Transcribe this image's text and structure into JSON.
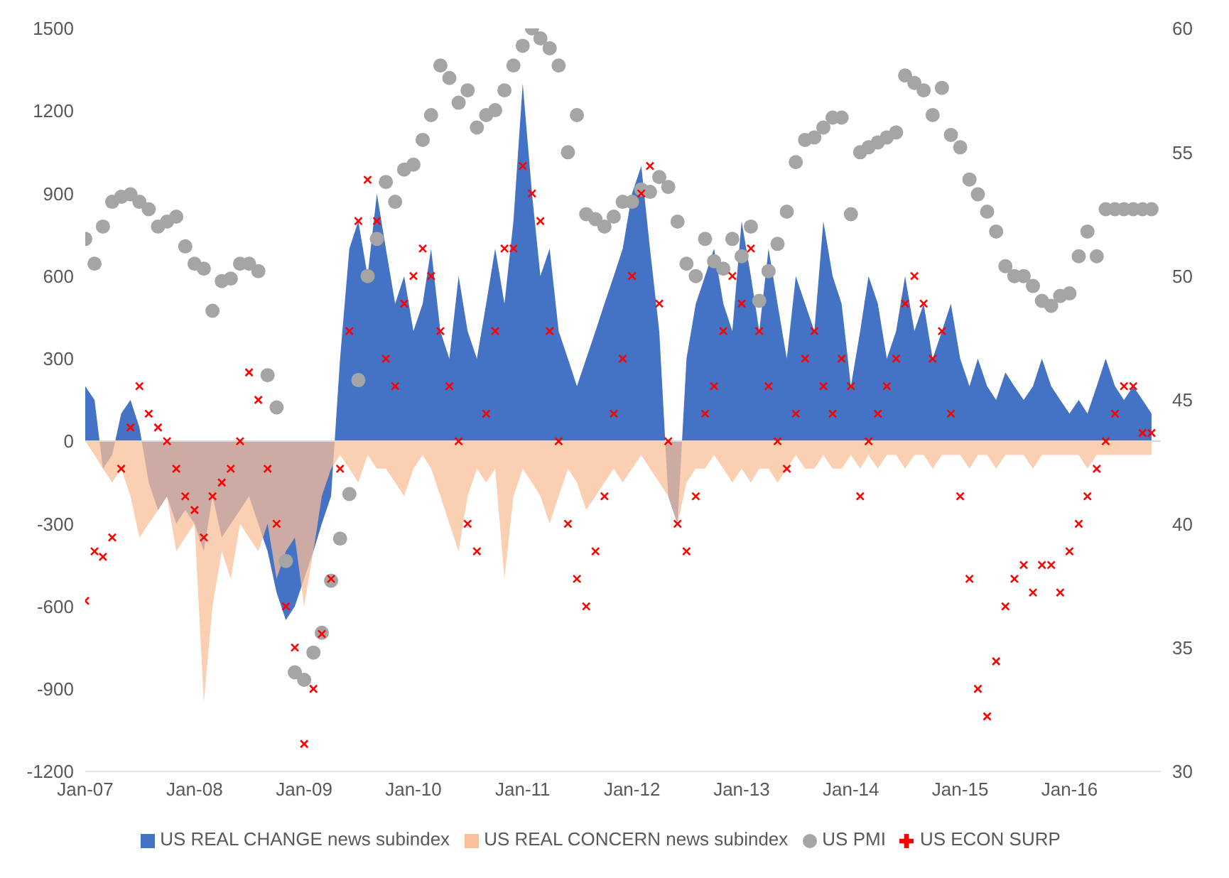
{
  "chart_data": {
    "type": "area",
    "x": [
      "2007-01",
      "2007-02",
      "2007-03",
      "2007-04",
      "2007-05",
      "2007-06",
      "2007-07",
      "2007-08",
      "2007-09",
      "2007-10",
      "2007-11",
      "2007-12",
      "2008-01",
      "2008-02",
      "2008-03",
      "2008-04",
      "2008-05",
      "2008-06",
      "2008-07",
      "2008-08",
      "2008-09",
      "2008-10",
      "2008-11",
      "2008-12",
      "2009-01",
      "2009-02",
      "2009-03",
      "2009-04",
      "2009-05",
      "2009-06",
      "2009-07",
      "2009-08",
      "2009-09",
      "2009-10",
      "2009-11",
      "2009-12",
      "2010-01",
      "2010-02",
      "2010-03",
      "2010-04",
      "2010-05",
      "2010-06",
      "2010-07",
      "2010-08",
      "2010-09",
      "2010-10",
      "2010-11",
      "2010-12",
      "2011-01",
      "2011-02",
      "2011-03",
      "2011-04",
      "2011-05",
      "2011-06",
      "2011-07",
      "2011-08",
      "2011-09",
      "2011-10",
      "2011-11",
      "2011-12",
      "2012-01",
      "2012-02",
      "2012-03",
      "2012-04",
      "2012-05",
      "2012-06",
      "2012-07",
      "2012-08",
      "2012-09",
      "2012-10",
      "2012-11",
      "2012-12",
      "2013-01",
      "2013-02",
      "2013-03",
      "2013-04",
      "2013-05",
      "2013-06",
      "2013-07",
      "2013-08",
      "2013-09",
      "2013-10",
      "2013-11",
      "2013-12",
      "2014-01",
      "2014-02",
      "2014-03",
      "2014-04",
      "2014-05",
      "2014-06",
      "2014-07",
      "2014-08",
      "2014-09",
      "2014-10",
      "2014-11",
      "2014-12",
      "2015-01",
      "2015-02",
      "2015-03",
      "2015-04",
      "2015-05",
      "2015-06",
      "2015-07",
      "2015-08",
      "2015-09",
      "2015-10",
      "2015-11",
      "2015-12",
      "2016-01",
      "2016-02",
      "2016-03",
      "2016-04",
      "2016-05",
      "2016-06",
      "2016-07",
      "2016-08",
      "2016-09",
      "2016-10"
    ],
    "series": [
      {
        "name": "US REAL CHANGE news subindex",
        "color": "#4472c4",
        "values": [
          200,
          150,
          -100,
          -50,
          100,
          150,
          50,
          -150,
          -250,
          -200,
          -300,
          -250,
          -300,
          -400,
          -200,
          -350,
          -300,
          -250,
          -200,
          -300,
          -400,
          -550,
          -650,
          -600,
          -500,
          -400,
          -300,
          -200,
          300,
          700,
          800,
          600,
          900,
          700,
          500,
          600,
          400,
          500,
          700,
          400,
          300,
          600,
          400,
          300,
          500,
          700,
          500,
          800,
          1300,
          900,
          600,
          700,
          400,
          300,
          200,
          300,
          400,
          500,
          600,
          700,
          900,
          1000,
          700,
          400,
          -200,
          -300,
          300,
          500,
          600,
          700,
          500,
          400,
          800,
          600,
          400,
          700,
          500,
          300,
          600,
          500,
          400,
          800,
          600,
          500,
          200,
          400,
          600,
          500,
          300,
          400,
          600,
          400,
          500,
          300,
          400,
          500,
          300,
          200,
          300,
          200,
          150,
          250,
          200,
          150,
          200,
          300,
          200,
          150,
          100,
          150,
          100,
          200,
          300,
          200,
          150,
          200,
          150,
          100
        ]
      },
      {
        "name": "US REAL CONCERN news subindex",
        "color": "#f8bf98",
        "values": [
          0,
          -50,
          -100,
          -150,
          -100,
          -200,
          -350,
          -300,
          -250,
          -200,
          -400,
          -350,
          -300,
          -950,
          -600,
          -400,
          -500,
          -300,
          -350,
          -400,
          -300,
          -500,
          -400,
          -350,
          -600,
          -400,
          -200,
          -100,
          -50,
          -100,
          -150,
          -50,
          -100,
          -100,
          -150,
          -200,
          -100,
          -50,
          -100,
          -200,
          -300,
          -400,
          -200,
          -100,
          -150,
          -100,
          -500,
          -200,
          -100,
          -150,
          -200,
          -300,
          -200,
          -100,
          -150,
          -250,
          -200,
          -150,
          -100,
          -150,
          -100,
          -50,
          -100,
          -150,
          -200,
          -300,
          -150,
          -100,
          -100,
          -50,
          -100,
          -150,
          -100,
          -150,
          -100,
          -100,
          -150,
          -100,
          -50,
          -100,
          -100,
          -50,
          -100,
          -100,
          -50,
          -100,
          -50,
          -100,
          -50,
          -50,
          -100,
          -50,
          -50,
          -100,
          -50,
          -50,
          -50,
          -100,
          -50,
          -50,
          -100,
          -50,
          -50,
          -50,
          -100,
          -50,
          -50,
          -50,
          -50,
          -50,
          -100,
          -50,
          -50,
          -50,
          -50,
          -50,
          -50,
          -50
        ]
      },
      {
        "name": "US PMI",
        "type": "scatter",
        "marker": "circle",
        "axis": "y2",
        "color": "#a5a5a5",
        "values": [
          51.5,
          50.5,
          52,
          53,
          53.2,
          53.3,
          53,
          52.7,
          52,
          52.2,
          52.4,
          51.2,
          50.5,
          50.3,
          48.6,
          49.8,
          49.9,
          50.5,
          50.5,
          50.2,
          46,
          44.7,
          38.5,
          34,
          33.7,
          34.8,
          35.6,
          37.7,
          39.4,
          41.2,
          45.8,
          50,
          51.5,
          53.8,
          53,
          54.3,
          54.5,
          55.5,
          56.5,
          58.5,
          58,
          57,
          57.5,
          56,
          56.5,
          56.7,
          57.5,
          58.5,
          59.3,
          60,
          59.6,
          59.2,
          58.5,
          55,
          56.5,
          52.5,
          52.3,
          52,
          52.4,
          53,
          53,
          53.5,
          53.4,
          54,
          53.6,
          52.2,
          50.5,
          50,
          51.5,
          50.6,
          50.3,
          51.5,
          50.8,
          52,
          49,
          50.2,
          51.3,
          52.6,
          54.6,
          55.5,
          55.6,
          56,
          56.4,
          56.4,
          52.5,
          55,
          55.2,
          55.4,
          55.6,
          55.8,
          58.1,
          57.8,
          57.5,
          56.5,
          57.6,
          55.7,
          55.2,
          53.9,
          53.3,
          52.6,
          51.8,
          50.4,
          50,
          50,
          49.6,
          49,
          48.8,
          49.2,
          49.3,
          50.8,
          51.8,
          50.8,
          52.7,
          52.7,
          52.7,
          52.7,
          52.7,
          52.7
        ]
      },
      {
        "name": "US ECON SURP",
        "type": "scatter",
        "marker": "cross",
        "color": "#ff0000",
        "values": [
          -580,
          -400,
          -420,
          -350,
          -100,
          50,
          200,
          100,
          50,
          0,
          -100,
          -200,
          -250,
          -350,
          -200,
          -150,
          -100,
          0,
          250,
          150,
          -100,
          -300,
          -600,
          -750,
          -1100,
          -900,
          -700,
          -500,
          -100,
          400,
          800,
          950,
          800,
          300,
          200,
          500,
          600,
          700,
          600,
          400,
          200,
          0,
          -300,
          -400,
          100,
          400,
          700,
          700,
          1000,
          900,
          800,
          400,
          0,
          -300,
          -500,
          -600,
          -400,
          -200,
          100,
          300,
          600,
          900,
          1000,
          500,
          0,
          -300,
          -400,
          -200,
          100,
          200,
          400,
          600,
          500,
          700,
          400,
          200,
          0,
          -100,
          100,
          300,
          400,
          200,
          100,
          300,
          200,
          -200,
          0,
          100,
          200,
          300,
          500,
          600,
          500,
          300,
          400,
          100,
          -200,
          -500,
          -900,
          -1000,
          -800,
          -600,
          -500,
          -450,
          -550,
          -450,
          -450,
          -550,
          -400,
          -300,
          -200,
          -100,
          0,
          100,
          200,
          200,
          30,
          30
        ]
      }
    ],
    "xlim": [
      "2007-01",
      "2016-11"
    ],
    "xticks": [
      {
        "value": "2007-01",
        "label": "Jan-07"
      },
      {
        "value": "2008-01",
        "label": "Jan-08"
      },
      {
        "value": "2009-01",
        "label": "Jan-09"
      },
      {
        "value": "2010-01",
        "label": "Jan-10"
      },
      {
        "value": "2011-01",
        "label": "Jan-11"
      },
      {
        "value": "2012-01",
        "label": "Jan-12"
      },
      {
        "value": "2013-01",
        "label": "Jan-13"
      },
      {
        "value": "2014-01",
        "label": "Jan-14"
      },
      {
        "value": "2015-01",
        "label": "Jan-15"
      },
      {
        "value": "2016-01",
        "label": "Jan-16"
      }
    ],
    "ylim": [
      -1200,
      1500
    ],
    "yticks": [
      -1200,
      -900,
      -600,
      -300,
      0,
      300,
      600,
      900,
      1200,
      1500
    ],
    "y2lim": [
      30,
      60
    ],
    "y2ticks": [
      30,
      35,
      40,
      45,
      50,
      55,
      60
    ],
    "ref_lines": [
      {
        "axis": "y",
        "value": 0,
        "color": "#d9d9d9"
      }
    ],
    "grid": false,
    "legend": "bottom"
  }
}
